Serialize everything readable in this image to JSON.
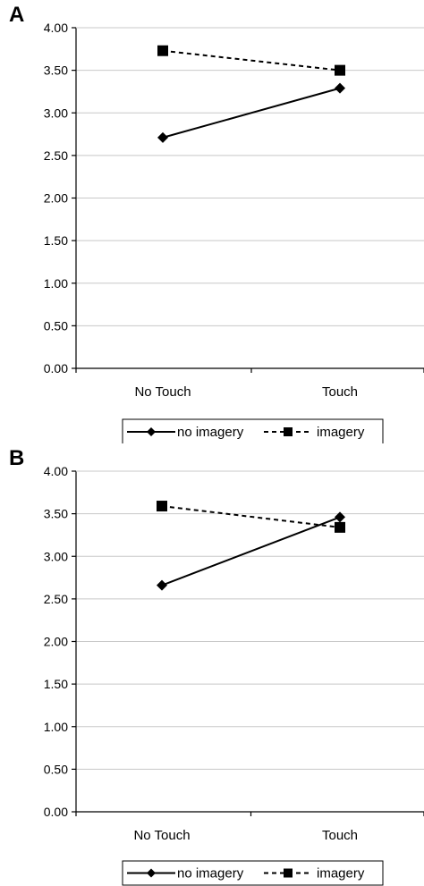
{
  "chart_data": [
    {
      "type": "line",
      "panel_label": "A",
      "categories": [
        "No Touch",
        "Touch"
      ],
      "ylim": [
        0,
        4
      ],
      "yticks": [
        "0.00",
        "0.50",
        "1.00",
        "1.50",
        "2.00",
        "2.50",
        "3.00",
        "3.50",
        "4.00"
      ],
      "grid": true,
      "legend_position": "bottom",
      "series": [
        {
          "name": "no imagery",
          "values": [
            2.71,
            3.29
          ],
          "style": "solid",
          "marker": "diamond",
          "color": "#000000"
        },
        {
          "name": "imagery",
          "values": [
            3.73,
            3.5
          ],
          "style": "dashed",
          "marker": "square",
          "color": "#000000"
        }
      ]
    },
    {
      "type": "line",
      "panel_label": "B",
      "categories": [
        "No Touch",
        "Touch"
      ],
      "ylim": [
        0,
        4
      ],
      "yticks": [
        "0.00",
        "0.50",
        "1.00",
        "1.50",
        "2.00",
        "2.50",
        "3.00",
        "3.50",
        "4.00"
      ],
      "grid": true,
      "legend_position": "bottom",
      "series": [
        {
          "name": "no imagery",
          "values": [
            2.66,
            3.46
          ],
          "style": "solid",
          "marker": "diamond",
          "color": "#000000"
        },
        {
          "name": "imagery",
          "values": [
            3.59,
            3.34
          ],
          "style": "dashed",
          "marker": "square",
          "color": "#000000"
        }
      ]
    }
  ]
}
